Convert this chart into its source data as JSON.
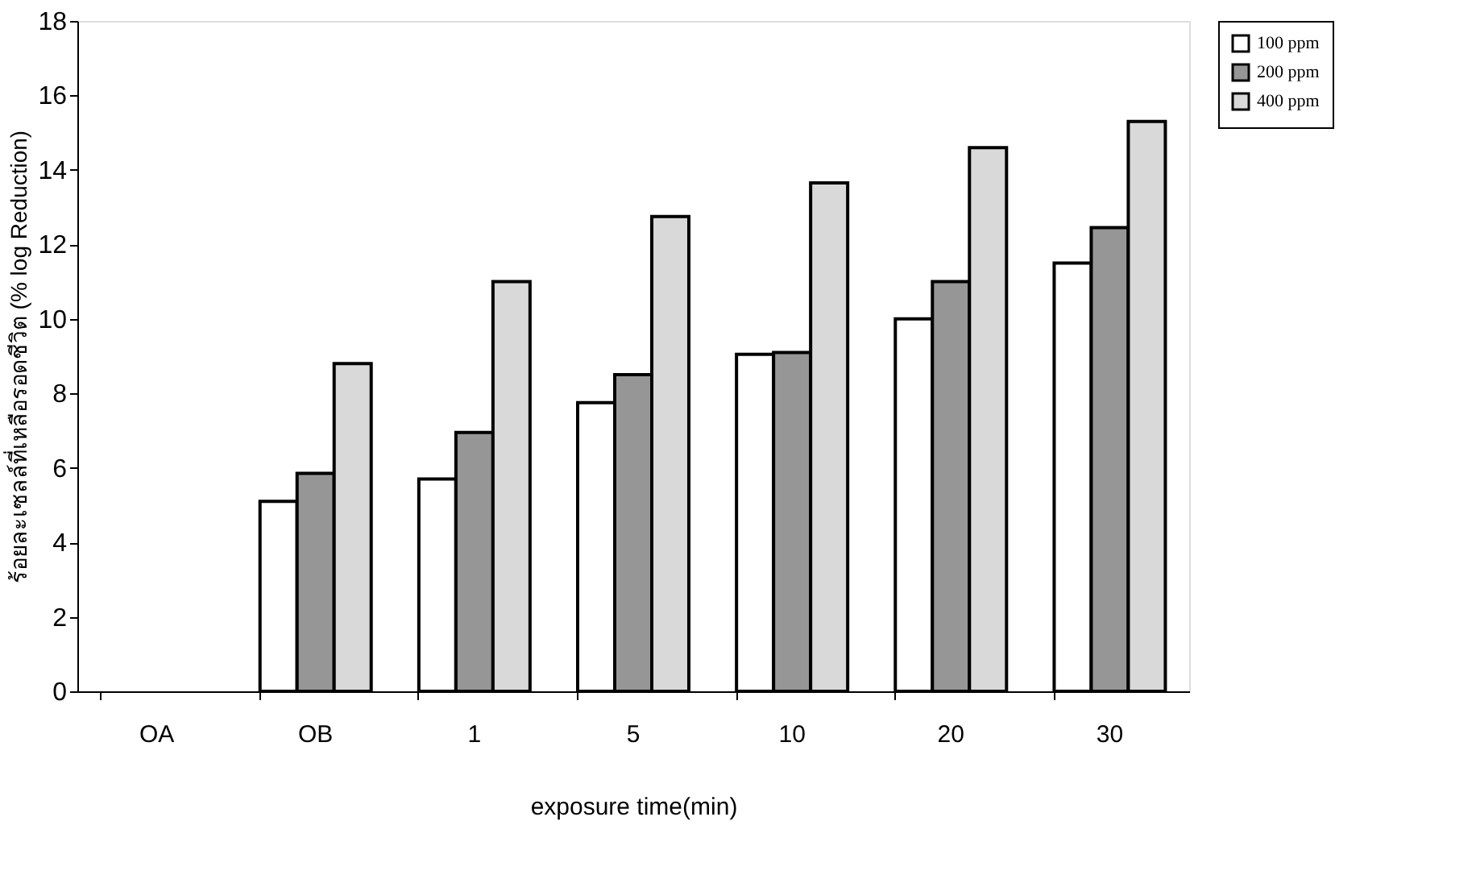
{
  "chart_data": {
    "type": "bar",
    "xlabel": "exposure time(min)",
    "ylabel": "ร้อยละเซลล์ที่เหลือรอดชีวิต (% log Reduction)",
    "categories": [
      "OA",
      "OB",
      "1",
      "5",
      "10",
      "20",
      "30"
    ],
    "series": [
      {
        "name": "100 ppm",
        "color": "#ffffff",
        "values": [
          null,
          5.1,
          5.7,
          7.75,
          9.05,
          10.0,
          11.5
        ]
      },
      {
        "name": "200 ppm",
        "color": "#969696",
        "values": [
          null,
          5.85,
          6.95,
          8.5,
          9.1,
          11.0,
          12.45
        ]
      },
      {
        "name": "400 ppm",
        "color": "#d9d9d9",
        "values": [
          null,
          8.8,
          11.0,
          12.75,
          13.65,
          14.6,
          15.3
        ]
      }
    ],
    "ylim": [
      0,
      18
    ],
    "yticks": [
      0,
      2,
      4,
      6,
      8,
      10,
      12,
      14,
      16,
      18
    ],
    "grid": false,
    "legend": "right"
  }
}
